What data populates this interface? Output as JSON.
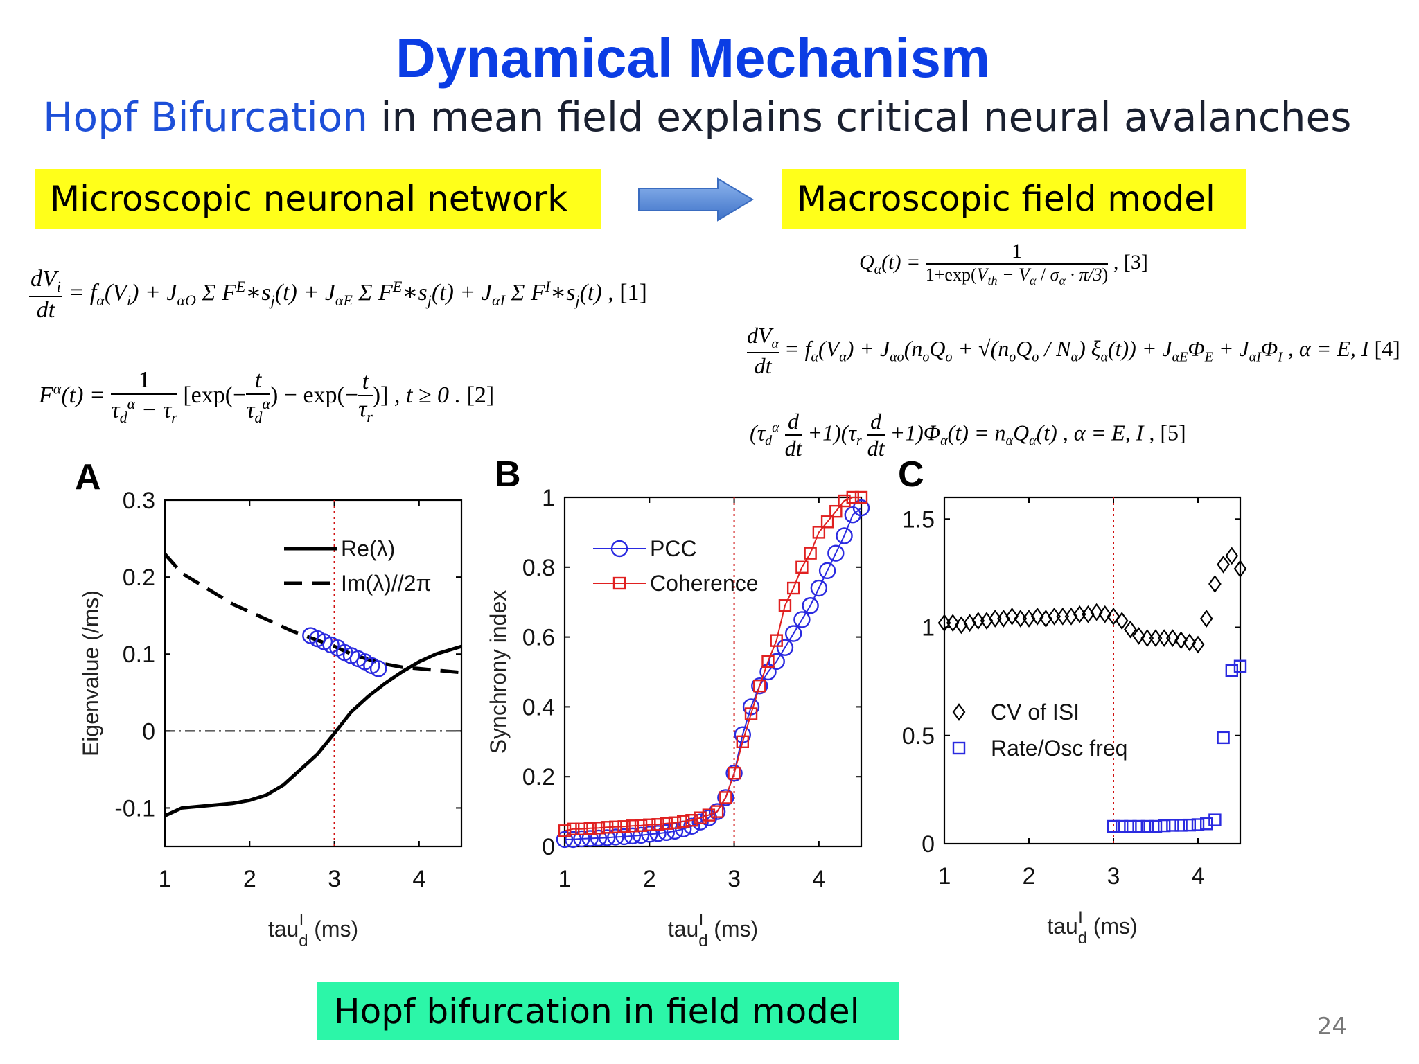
{
  "slide": {
    "title": "Dynamical Mechanism",
    "subtitle_accent": "Hopf Bifurcation",
    "subtitle_rest": " in mean field explains critical neural  avalanches",
    "box_left": "Microscopic neuronal network",
    "box_right": "Macroscopic field model",
    "box_bottom": "Hopf bifurcation in field model",
    "page_number": "24",
    "colors": {
      "title": "#0b3de4",
      "box_yellow": "#ffff1a",
      "box_green": "#2cf6a8",
      "arrow": "#5b8fd8"
    }
  },
  "equations": {
    "eq1_tag": "[1]",
    "eq2_tag": "[2]",
    "eq3_tag": "[3]",
    "eq4_tag": "[4]",
    "eq5_tag": "[5]"
  },
  "chart_data": [
    {
      "panel": "A",
      "type": "line",
      "xlabel": "tau_d^I (ms)",
      "ylabel": "Eigenvalue (/ms)",
      "xlim": [
        1,
        4.5
      ],
      "ylim": [
        -0.15,
        0.3
      ],
      "xticks": [
        1,
        2,
        3,
        4
      ],
      "yticks": [
        -0.1,
        0,
        0.1,
        0.2,
        0.3
      ],
      "ytick_labels": [
        "-0.1",
        "0",
        "0.1",
        "0.2",
        "0.3"
      ],
      "vline_x": 3,
      "hline_y": 0,
      "legend_position": "top-right",
      "series": [
        {
          "name": "Re(λ)",
          "style": "solid",
          "color": "#000000",
          "x": [
            1.0,
            1.2,
            1.5,
            1.8,
            2.0,
            2.2,
            2.4,
            2.6,
            2.8,
            3.0,
            3.2,
            3.4,
            3.6,
            3.8,
            4.0,
            4.2,
            4.5
          ],
          "y": [
            -0.11,
            -0.1,
            -0.097,
            -0.094,
            -0.09,
            -0.083,
            -0.07,
            -0.05,
            -0.03,
            -0.003,
            0.025,
            0.045,
            0.062,
            0.077,
            0.09,
            0.1,
            0.11
          ]
        },
        {
          "name": "Im(λ)//2π",
          "style": "dashed",
          "color": "#000000",
          "x": [
            1.0,
            1.2,
            1.5,
            1.8,
            2.0,
            2.2,
            2.5,
            2.8,
            3.0,
            3.2,
            3.4,
            3.6,
            3.8,
            4.0,
            4.2,
            4.5
          ],
          "y": [
            0.23,
            0.205,
            0.185,
            0.165,
            0.155,
            0.145,
            0.13,
            0.118,
            0.11,
            0.1,
            0.093,
            0.087,
            0.083,
            0.081,
            0.079,
            0.076
          ]
        },
        {
          "name": "",
          "style": "markers",
          "marker": "circle",
          "color": "#2a2ae0",
          "x": [
            2.72,
            2.8,
            2.88,
            2.96,
            3.04,
            3.12,
            3.2,
            3.28,
            3.36,
            3.44,
            3.52
          ],
          "y": [
            0.124,
            0.12,
            0.116,
            0.112,
            0.108,
            0.102,
            0.098,
            0.094,
            0.09,
            0.085,
            0.081
          ]
        }
      ]
    },
    {
      "panel": "B",
      "type": "line",
      "xlabel": "tau_d^I (ms)",
      "ylabel": "Synchrony index",
      "xlim": [
        1,
        4.5
      ],
      "ylim": [
        0,
        1
      ],
      "xticks": [
        1,
        2,
        3,
        4
      ],
      "yticks": [
        0,
        0.2,
        0.4,
        0.6,
        0.8,
        1
      ],
      "ytick_labels": [
        "0",
        "0.2",
        "0.4",
        "0.6",
        "0.8",
        "1"
      ],
      "vline_x": 3,
      "legend_position": "top-left",
      "series": [
        {
          "name": "PCC",
          "marker": "circle",
          "color": "#2a2ae0",
          "x": [
            1.0,
            1.1,
            1.2,
            1.3,
            1.4,
            1.5,
            1.6,
            1.7,
            1.8,
            1.9,
            2.0,
            2.1,
            2.2,
            2.3,
            2.4,
            2.5,
            2.6,
            2.7,
            2.8,
            2.9,
            3.0,
            3.1,
            3.2,
            3.3,
            3.4,
            3.5,
            3.6,
            3.7,
            3.8,
            3.9,
            4.0,
            4.1,
            4.2,
            4.3,
            4.4,
            4.5
          ],
          "y": [
            0.02,
            0.02,
            0.022,
            0.023,
            0.024,
            0.025,
            0.027,
            0.028,
            0.03,
            0.032,
            0.035,
            0.037,
            0.04,
            0.044,
            0.05,
            0.058,
            0.07,
            0.082,
            0.1,
            0.14,
            0.21,
            0.32,
            0.4,
            0.46,
            0.5,
            0.53,
            0.57,
            0.61,
            0.65,
            0.69,
            0.74,
            0.79,
            0.84,
            0.89,
            0.95,
            0.97
          ]
        },
        {
          "name": "Coherence",
          "marker": "square",
          "color": "#e02020",
          "x": [
            1.0,
            1.1,
            1.2,
            1.3,
            1.4,
            1.5,
            1.6,
            1.7,
            1.8,
            1.9,
            2.0,
            2.1,
            2.2,
            2.3,
            2.4,
            2.5,
            2.6,
            2.7,
            2.8,
            2.9,
            3.0,
            3.1,
            3.2,
            3.3,
            3.4,
            3.5,
            3.6,
            3.7,
            3.8,
            3.9,
            4.0,
            4.1,
            4.2,
            4.3,
            4.4,
            4.5
          ],
          "y": [
            0.045,
            0.05,
            0.05,
            0.052,
            0.053,
            0.055,
            0.056,
            0.057,
            0.059,
            0.06,
            0.062,
            0.063,
            0.066,
            0.068,
            0.072,
            0.075,
            0.082,
            0.09,
            0.1,
            0.14,
            0.21,
            0.3,
            0.38,
            0.46,
            0.53,
            0.59,
            0.69,
            0.74,
            0.8,
            0.84,
            0.9,
            0.93,
            0.96,
            0.99,
            1.0,
            1.0
          ]
        }
      ]
    },
    {
      "panel": "C",
      "type": "scatter",
      "xlabel": "tau_d^I (ms)",
      "ylabel": "",
      "xlim": [
        1,
        4.5
      ],
      "ylim": [
        0,
        1.6
      ],
      "xticks": [
        1,
        2,
        3,
        4
      ],
      "yticks": [
        0,
        0.5,
        1,
        1.5
      ],
      "ytick_labels": [
        "0",
        "0.5",
        "1",
        "1.5"
      ],
      "vline_x": 3,
      "legend_position": "bottom-left",
      "series": [
        {
          "name": "CV of ISI",
          "marker": "diamond",
          "color": "#000000",
          "x": [
            1.0,
            1.1,
            1.2,
            1.3,
            1.4,
            1.5,
            1.6,
            1.7,
            1.8,
            1.9,
            2.0,
            2.1,
            2.2,
            2.3,
            2.4,
            2.5,
            2.6,
            2.7,
            2.8,
            2.9,
            3.0,
            3.1,
            3.2,
            3.3,
            3.4,
            3.5,
            3.6,
            3.7,
            3.8,
            3.9,
            4.0,
            4.1,
            4.2,
            4.3,
            4.4,
            4.5
          ],
          "y": [
            1.02,
            1.02,
            1.01,
            1.02,
            1.03,
            1.03,
            1.04,
            1.04,
            1.05,
            1.04,
            1.04,
            1.05,
            1.04,
            1.05,
            1.05,
            1.05,
            1.06,
            1.06,
            1.07,
            1.06,
            1.05,
            1.03,
            0.99,
            0.96,
            0.95,
            0.95,
            0.95,
            0.95,
            0.94,
            0.93,
            0.92,
            1.04,
            1.2,
            1.29,
            1.33,
            1.27
          ]
        },
        {
          "name": "Rate/Osc freq",
          "marker": "square",
          "color": "#2a2ae0",
          "x": [
            3.0,
            3.1,
            3.2,
            3.3,
            3.4,
            3.5,
            3.6,
            3.7,
            3.8,
            3.9,
            4.0,
            4.1,
            4.2,
            4.3,
            4.4,
            4.5
          ],
          "y": [
            0.08,
            0.08,
            0.08,
            0.08,
            0.08,
            0.08,
            0.083,
            0.085,
            0.085,
            0.086,
            0.088,
            0.092,
            0.11,
            0.49,
            0.8,
            0.82
          ]
        }
      ]
    }
  ]
}
